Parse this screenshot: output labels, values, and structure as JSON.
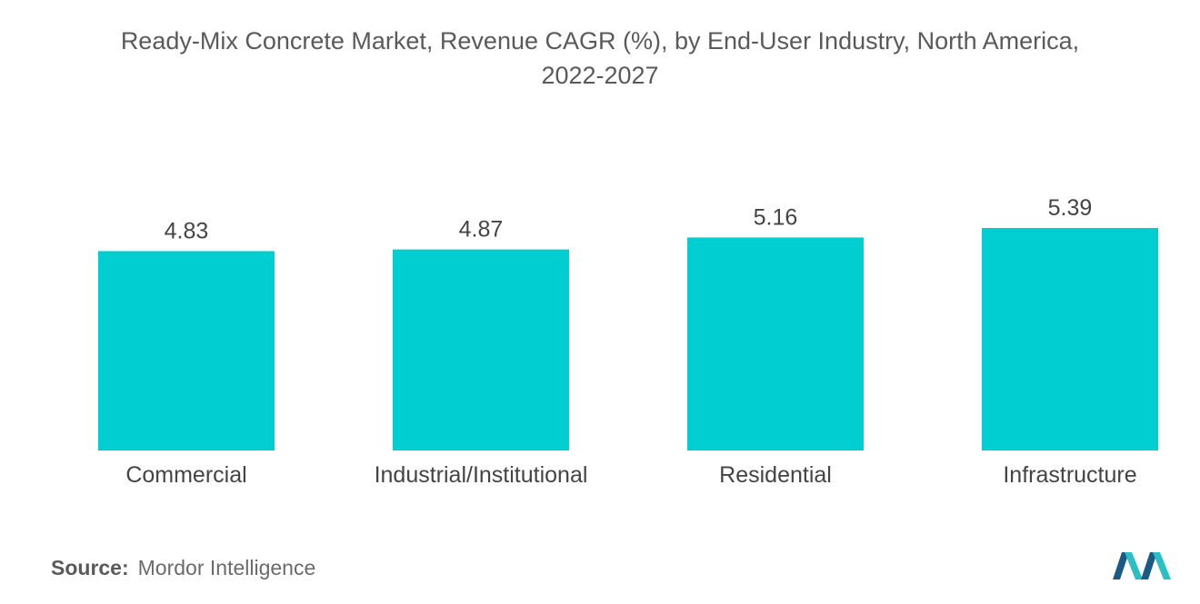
{
  "title_line1": "Ready-Mix Concrete Market, Revenue CAGR (%), by End-User Industry, North America,",
  "title_line2": "2022-2027",
  "source_label": "Source:",
  "source_value": "Mordor Intelligence",
  "colors": {
    "bar": "#00CED1",
    "text": "#444444",
    "logo_dark": "#1B5A84",
    "logo_light": "#2BBFC4"
  },
  "chart_data": {
    "type": "bar",
    "title": "Ready-Mix Concrete Market, Revenue CAGR (%), by End-User Industry, North America, 2022-2027",
    "categories": [
      "Commercial",
      "Industrial/Institutional",
      "Residential",
      "Infrastructure"
    ],
    "values": [
      4.83,
      4.87,
      5.16,
      5.39
    ],
    "data_labels": [
      "4.83",
      "4.87",
      "5.16",
      "5.39"
    ],
    "xlabel": "",
    "ylabel": "",
    "grid": false,
    "legend": "none"
  }
}
